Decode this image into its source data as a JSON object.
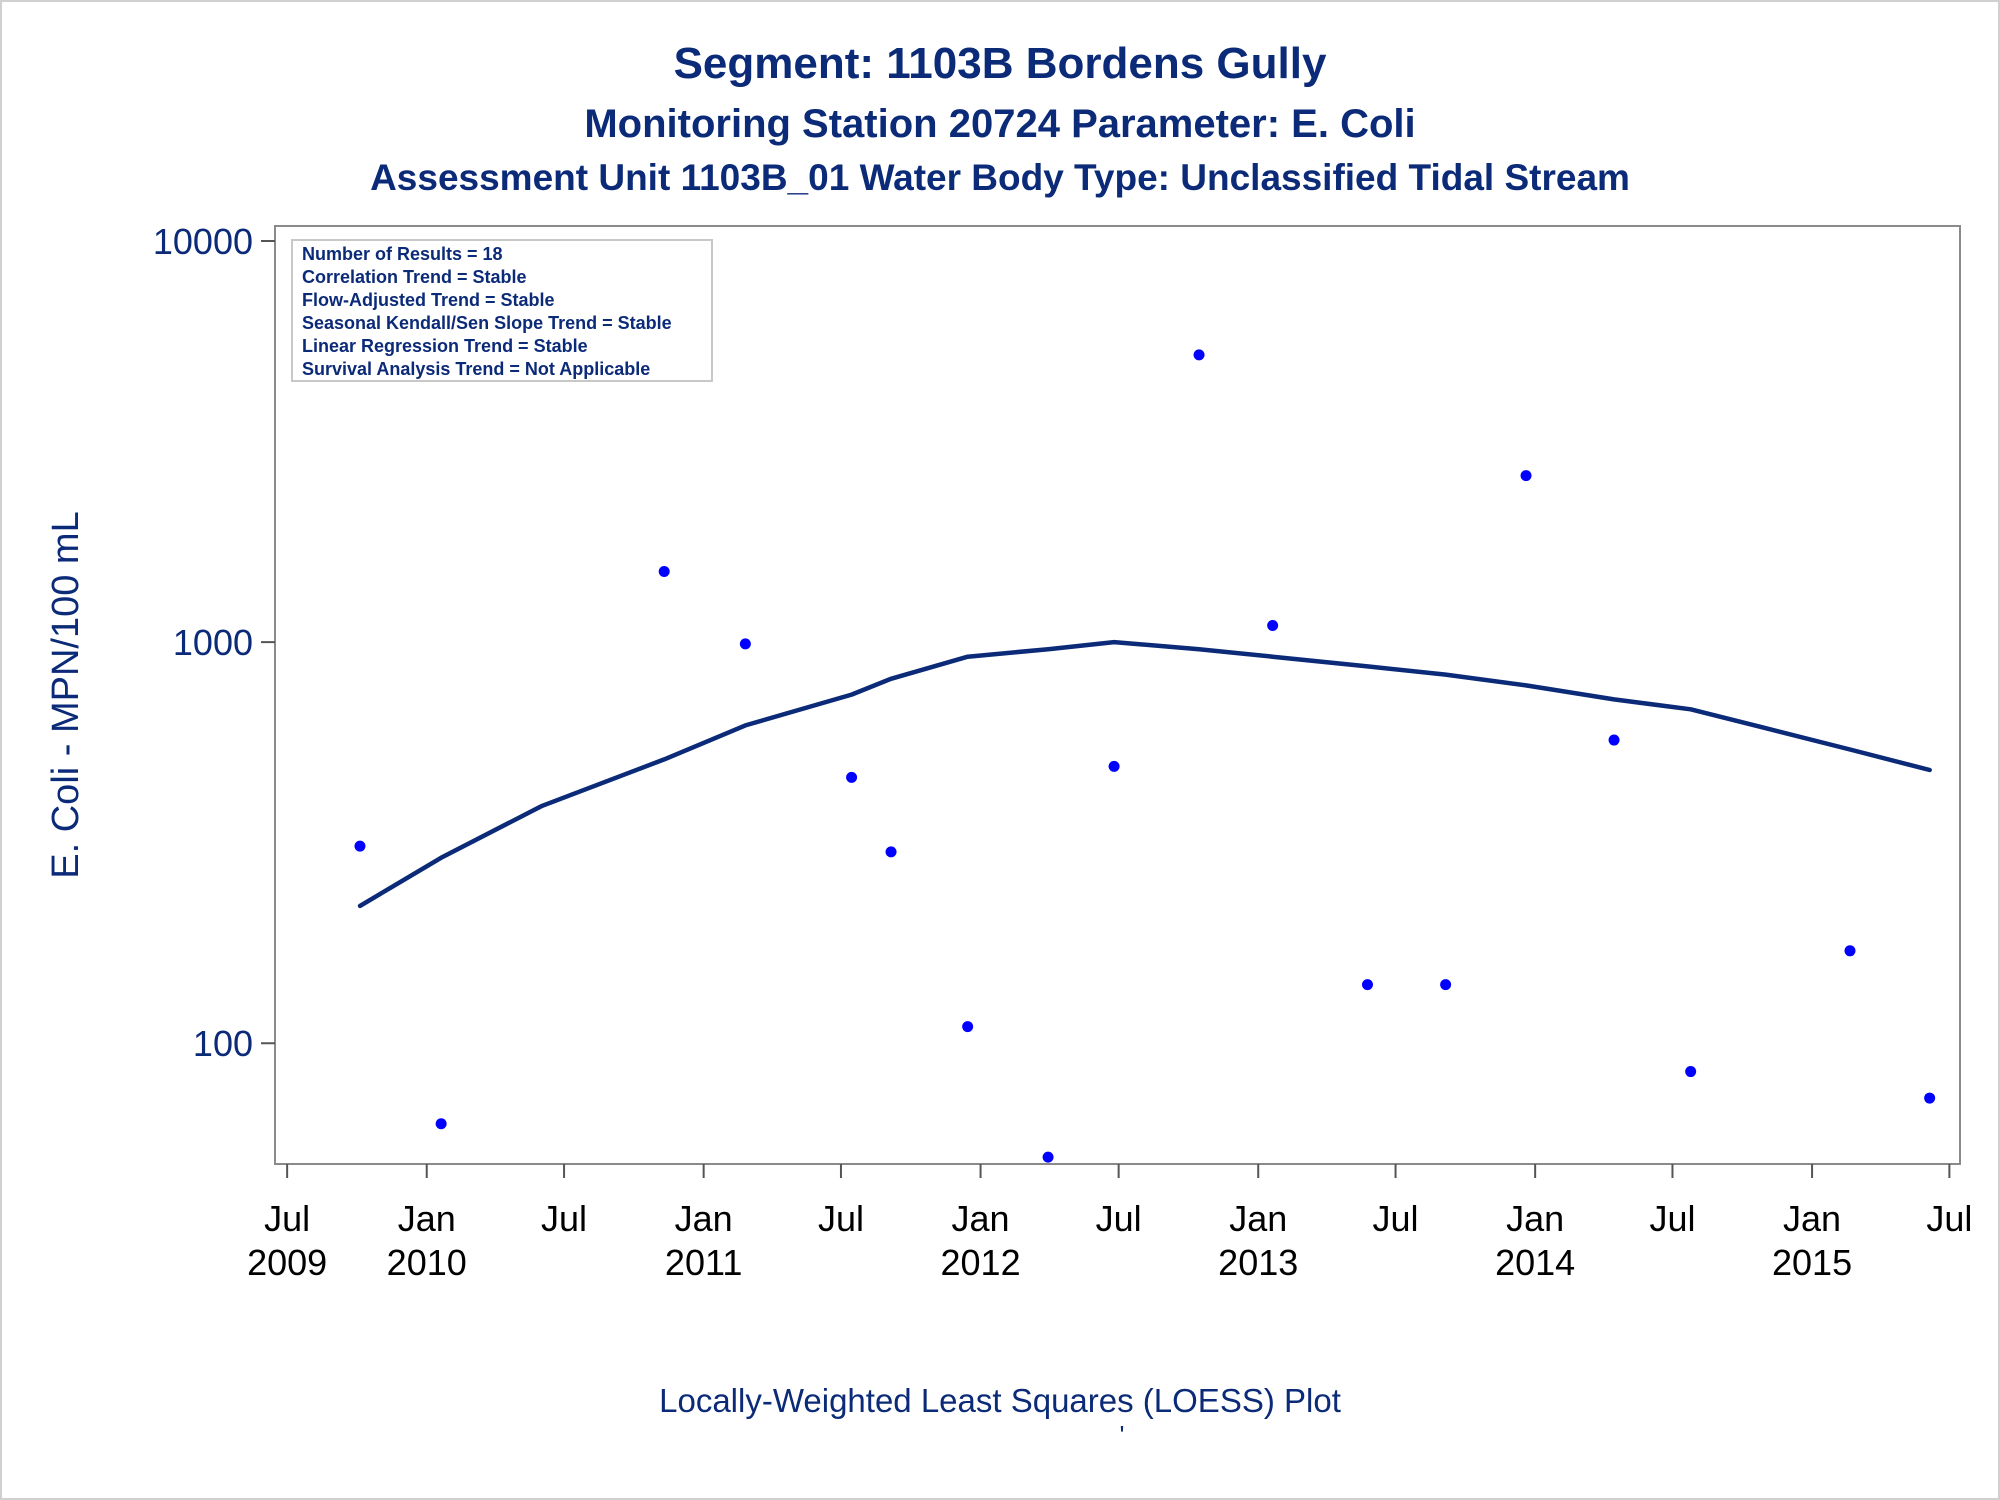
{
  "chart_data": {
    "type": "scatter",
    "title": "Segment: 1103B  Bordens Gully",
    "subtitle_1": "Monitoring Station 20724 Parameter: E. Coli",
    "subtitle_2": "Assessment Unit 1103B_01   Water Body Type: Unclassified Tidal Stream",
    "ylabel": "E. Coli - MPN/100 mL",
    "xlabel": "",
    "footnote": "Locally-Weighted Least Squares (LOESS) Plot",
    "footnote_mark": "'",
    "y_scale": "log",
    "ylim": [
      50,
      10000
    ],
    "y_ticks": [
      {
        "value": 100,
        "label": "100"
      },
      {
        "value": 1000,
        "label": "1000"
      },
      {
        "value": 10000,
        "label": "10000"
      }
    ],
    "xlim": [
      "2009-06-15",
      "2015-07-15"
    ],
    "x_ticks": [
      {
        "date": "2009-07-01",
        "line1": "Jul",
        "line2": "2009"
      },
      {
        "date": "2010-01-01",
        "line1": "Jan",
        "line2": "2010"
      },
      {
        "date": "2010-07-01",
        "line1": "Jul",
        "line2": ""
      },
      {
        "date": "2011-01-01",
        "line1": "Jan",
        "line2": "2011"
      },
      {
        "date": "2011-07-01",
        "line1": "Jul",
        "line2": ""
      },
      {
        "date": "2012-01-01",
        "line1": "Jan",
        "line2": "2012"
      },
      {
        "date": "2012-07-01",
        "line1": "Jul",
        "line2": ""
      },
      {
        "date": "2013-01-01",
        "line1": "Jan",
        "line2": "2013"
      },
      {
        "date": "2013-07-01",
        "line1": "Jul",
        "line2": ""
      },
      {
        "date": "2014-01-01",
        "line1": "Jan",
        "line2": "2014"
      },
      {
        "date": "2014-07-01",
        "line1": "Jul",
        "line2": ""
      },
      {
        "date": "2015-01-01",
        "line1": "Jan",
        "line2": "2015"
      },
      {
        "date": "2015-07-01",
        "line1": "Jul",
        "line2": ""
      }
    ],
    "stats_box": [
      "Number of Results = 18",
      "Correlation Trend = Stable",
      "Flow-Adjusted Trend = Stable",
      "Seasonal Kendall/Sen Slope Trend = Stable",
      "Linear Regression Trend = Stable",
      "Survival Analysis Trend = Not Applicable"
    ],
    "grid": false,
    "series": [
      {
        "kind": "points",
        "color": "#0000ff",
        "points": [
          {
            "x": "2009-10-05",
            "y": 310
          },
          {
            "x": "2010-01-20",
            "y": 63
          },
          {
            "x": "2010-11-10",
            "y": 1500
          },
          {
            "x": "2011-02-25",
            "y": 990
          },
          {
            "x": "2011-07-15",
            "y": 460
          },
          {
            "x": "2011-09-05",
            "y": 300
          },
          {
            "x": "2011-12-15",
            "y": 110
          },
          {
            "x": "2012-03-30",
            "y": 52
          },
          {
            "x": "2012-06-25",
            "y": 490
          },
          {
            "x": "2012-10-15",
            "y": 5200
          },
          {
            "x": "2013-01-20",
            "y": 1100
          },
          {
            "x": "2013-05-25",
            "y": 140
          },
          {
            "x": "2013-09-05",
            "y": 140
          },
          {
            "x": "2013-12-20",
            "y": 2600
          },
          {
            "x": "2014-04-15",
            "y": 570
          },
          {
            "x": "2014-07-25",
            "y": 85
          },
          {
            "x": "2015-02-20",
            "y": 170
          },
          {
            "x": "2015-06-05",
            "y": 73
          }
        ]
      },
      {
        "kind": "line",
        "color": "#0b2a78",
        "points": [
          {
            "x": "2009-10-05",
            "y": 220
          },
          {
            "x": "2010-01-20",
            "y": 290
          },
          {
            "x": "2010-06-01",
            "y": 390
          },
          {
            "x": "2010-11-10",
            "y": 510
          },
          {
            "x": "2011-02-25",
            "y": 620
          },
          {
            "x": "2011-07-15",
            "y": 740
          },
          {
            "x": "2011-09-05",
            "y": 810
          },
          {
            "x": "2011-12-15",
            "y": 920
          },
          {
            "x": "2012-03-30",
            "y": 960
          },
          {
            "x": "2012-06-25",
            "y": 1000
          },
          {
            "x": "2012-10-15",
            "y": 960
          },
          {
            "x": "2013-01-20",
            "y": 920
          },
          {
            "x": "2013-05-25",
            "y": 870
          },
          {
            "x": "2013-09-05",
            "y": 830
          },
          {
            "x": "2013-12-20",
            "y": 780
          },
          {
            "x": "2014-04-15",
            "y": 720
          },
          {
            "x": "2014-07-25",
            "y": 680
          },
          {
            "x": "2014-11-01",
            "y": 610
          },
          {
            "x": "2015-02-20",
            "y": 540
          },
          {
            "x": "2015-06-05",
            "y": 480
          }
        ]
      }
    ]
  }
}
